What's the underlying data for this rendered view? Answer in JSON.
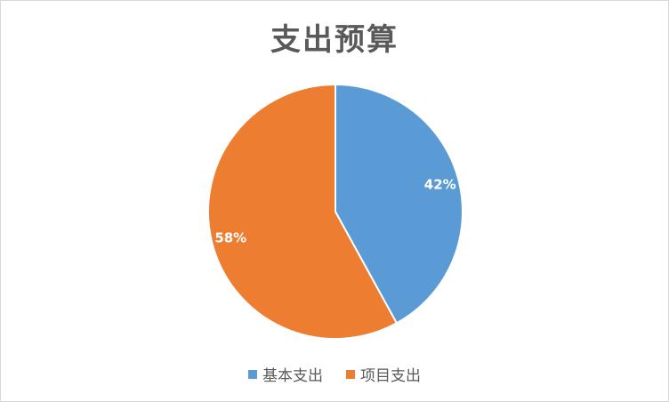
{
  "chart_data": {
    "type": "pie",
    "title": "支出预算",
    "categories": [
      "基本支出",
      "项目支出"
    ],
    "values": [
      42,
      58
    ],
    "labels": [
      "42%",
      "58%"
    ],
    "colors": [
      "#5B9BD5",
      "#ED7D31"
    ],
    "legend_position": "bottom"
  }
}
